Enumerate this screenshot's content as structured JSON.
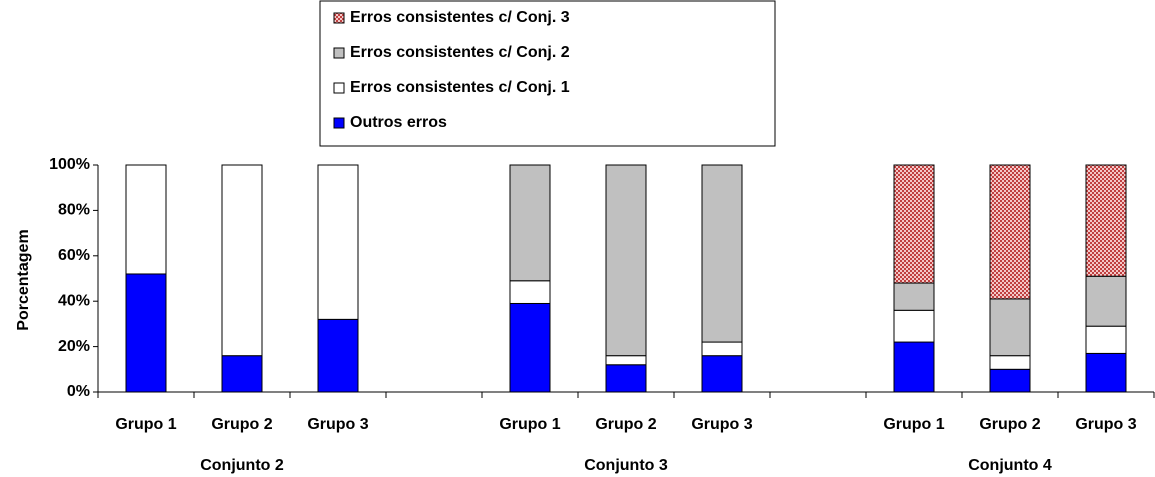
{
  "chart_data": {
    "type": "stacked_bar",
    "y_label": "Porcentagem",
    "categories": [
      "Grupo 1",
      "Grupo 2",
      "Grupo 3",
      null,
      "Grupo 1",
      "Grupo 2",
      "Grupo 3",
      null,
      "Grupo 1",
      "Grupo 2",
      "Grupo 3"
    ],
    "groups": [
      "Conjunto 2",
      "Conjunto 3",
      "Conjunto 4"
    ],
    "series": [
      {
        "name": "Outros erros",
        "color": "#0000ff",
        "values": [
          52,
          16,
          32,
          null,
          39,
          12,
          16,
          null,
          22,
          10,
          17
        ]
      },
      {
        "name": "Erros consistentes c/ Conj. 1",
        "color": "#ffffff",
        "values": [
          48,
          84,
          68,
          null,
          10,
          4,
          6,
          null,
          14,
          6,
          12
        ]
      },
      {
        "name": "Erros consistentes c/ Conj. 2",
        "color": "#c0c0c0",
        "values": [
          null,
          null,
          null,
          null,
          51,
          84,
          78,
          null,
          12,
          25,
          22
        ]
      },
      {
        "name": "Erros consistentes c/ Conj. 3",
        "color": "#f2b8b8",
        "values": [
          null,
          null,
          null,
          null,
          null,
          null,
          null,
          null,
          52,
          59,
          49
        ]
      }
    ],
    "ylim": [
      0,
      100
    ],
    "yticks": [
      {
        "value": 0,
        "label": "0%"
      },
      {
        "value": 20,
        "label": "20%"
      },
      {
        "value": 40,
        "label": "40%"
      },
      {
        "value": 60,
        "label": "60%"
      },
      {
        "value": 80,
        "label": "80%"
      },
      {
        "value": 100,
        "label": "100%"
      }
    ],
    "legend": "top"
  }
}
